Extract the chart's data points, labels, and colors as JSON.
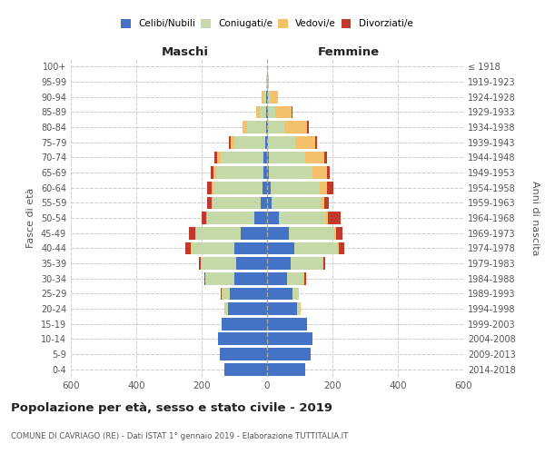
{
  "age_groups": [
    "100+",
    "95-99",
    "90-94",
    "85-89",
    "80-84",
    "75-79",
    "70-74",
    "65-69",
    "60-64",
    "55-59",
    "50-54",
    "45-49",
    "40-44",
    "35-39",
    "30-34",
    "25-29",
    "20-24",
    "15-19",
    "10-14",
    "5-9",
    "0-4"
  ],
  "birth_years": [
    "≤ 1918",
    "1919-1923",
    "1924-1928",
    "1929-1933",
    "1934-1938",
    "1939-1943",
    "1944-1948",
    "1949-1953",
    "1954-1958",
    "1959-1963",
    "1964-1968",
    "1969-1973",
    "1974-1978",
    "1979-1983",
    "1984-1988",
    "1989-1993",
    "1994-1998",
    "1999-2003",
    "2004-2008",
    "2009-2013",
    "2014-2018"
  ],
  "male": {
    "celibi": [
      0,
      0,
      2,
      3,
      4,
      6,
      12,
      10,
      15,
      20,
      38,
      80,
      100,
      95,
      100,
      115,
      120,
      140,
      150,
      145,
      130
    ],
    "coniugati": [
      0,
      2,
      8,
      20,
      58,
      95,
      130,
      145,
      150,
      148,
      145,
      138,
      130,
      108,
      88,
      22,
      8,
      0,
      0,
      0,
      0
    ],
    "vedovi": [
      0,
      1,
      8,
      10,
      12,
      10,
      10,
      8,
      5,
      2,
      2,
      2,
      2,
      0,
      0,
      2,
      2,
      0,
      0,
      0,
      0
    ],
    "divorziati": [
      0,
      0,
      0,
      0,
      2,
      5,
      8,
      10,
      12,
      12,
      15,
      20,
      18,
      5,
      5,
      2,
      0,
      0,
      0,
      0,
      0
    ]
  },
  "female": {
    "nubili": [
      0,
      0,
      2,
      2,
      2,
      4,
      5,
      5,
      10,
      15,
      35,
      68,
      82,
      72,
      60,
      78,
      92,
      122,
      138,
      132,
      118
    ],
    "coniugate": [
      0,
      2,
      10,
      22,
      52,
      82,
      112,
      135,
      150,
      148,
      143,
      138,
      132,
      98,
      52,
      18,
      8,
      0,
      0,
      0,
      0
    ],
    "vedove": [
      0,
      4,
      22,
      52,
      68,
      62,
      58,
      42,
      22,
      12,
      8,
      5,
      5,
      2,
      2,
      2,
      2,
      0,
      0,
      0,
      0
    ],
    "divorziate": [
      0,
      0,
      0,
      2,
      5,
      5,
      8,
      10,
      22,
      15,
      38,
      20,
      18,
      5,
      5,
      0,
      2,
      0,
      0,
      0,
      0
    ]
  },
  "colors": {
    "celibi": "#4472c4",
    "coniugati": "#c5d9a8",
    "vedovi": "#f5c06a",
    "divorziati": "#c0392b"
  },
  "xlim": 600,
  "title": "Popolazione per età, sesso e stato civile - 2019",
  "subtitle": "COMUNE DI CAVRIAGO (RE) - Dati ISTAT 1° gennaio 2019 - Elaborazione TUTTITALIA.IT",
  "ylabel_left": "Fasce di età",
  "ylabel_right": "Anni di nascita",
  "xlabel_left": "Maschi",
  "xlabel_right": "Femmine"
}
